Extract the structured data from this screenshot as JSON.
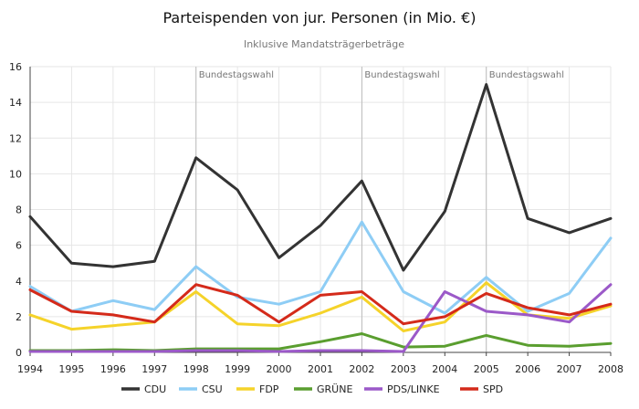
{
  "chart_data": {
    "type": "line",
    "title": "Parteispenden von jur. Personen (in Mio. €)",
    "subtitle": "Inklusive Mandatsträgerbeträge",
    "x": [
      "1994",
      "1995",
      "1996",
      "1997",
      "1998",
      "1999",
      "2000",
      "2001",
      "2002",
      "2003",
      "2004",
      "2005",
      "2006",
      "2007",
      "2008"
    ],
    "ylim": [
      0,
      16
    ],
    "yticks": [
      0,
      2,
      4,
      6,
      8,
      10,
      12,
      14,
      16
    ],
    "grid": true,
    "legend_position": "bottom",
    "annotations": [
      {
        "x": "1998",
        "label": "Bundestagswahl"
      },
      {
        "x": "2002",
        "label": "Bundestagswahl"
      },
      {
        "x": "2005",
        "label": "Bundestagswahl"
      }
    ],
    "series": [
      {
        "name": "CDU",
        "color": "#333333",
        "values": [
          7.6,
          5.0,
          4.8,
          5.1,
          10.9,
          9.1,
          5.3,
          7.1,
          9.6,
          4.6,
          7.9,
          15.0,
          7.5,
          6.7,
          7.5
        ]
      },
      {
        "name": "CSU",
        "color": "#8ecdf5",
        "values": [
          3.7,
          2.3,
          2.9,
          2.4,
          4.8,
          3.1,
          2.7,
          3.4,
          7.3,
          3.4,
          2.2,
          4.2,
          2.3,
          3.3,
          6.4
        ]
      },
      {
        "name": "FDP",
        "color": "#f5d32a",
        "values": [
          2.1,
          1.3,
          1.5,
          1.7,
          3.4,
          1.6,
          1.5,
          2.2,
          3.1,
          1.2,
          1.7,
          3.9,
          2.1,
          1.9,
          2.6
        ]
      },
      {
        "name": "GRÜNE",
        "color": "#5a9e2f",
        "values": [
          0.1,
          0.1,
          0.15,
          0.1,
          0.2,
          0.2,
          0.2,
          0.6,
          1.05,
          0.3,
          0.35,
          0.95,
          0.4,
          0.35,
          0.5
        ]
      },
      {
        "name": "PDS/LINKE",
        "color": "#9b59c8",
        "values": [
          0.05,
          0.05,
          0.05,
          0.05,
          0.1,
          0.1,
          0.05,
          0.1,
          0.1,
          0.05,
          3.4,
          2.3,
          2.1,
          1.7,
          3.8
        ]
      },
      {
        "name": "SPD",
        "color": "#d42a1a",
        "values": [
          3.5,
          2.3,
          2.1,
          1.7,
          3.8,
          3.2,
          1.7,
          3.2,
          3.4,
          1.6,
          2.0,
          3.3,
          2.5,
          2.1,
          2.7
        ]
      }
    ]
  }
}
